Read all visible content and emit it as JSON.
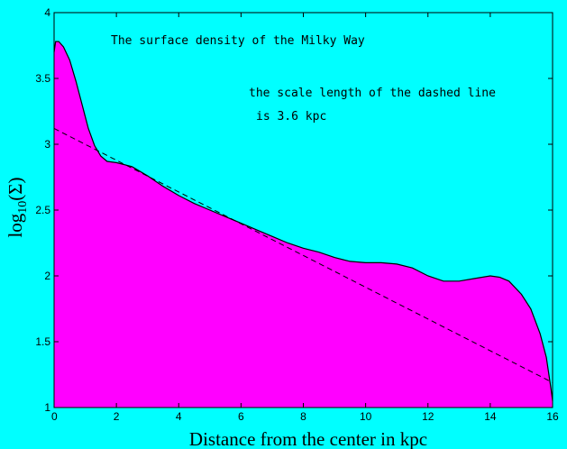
{
  "chart_data": {
    "type": "area",
    "title": "",
    "xlabel": "Distance from the center in kpc",
    "ylabel": {
      "base": "log",
      "sub": "10",
      "arg": "(Σ)"
    },
    "xlim": [
      0,
      16
    ],
    "ylim": [
      1,
      4
    ],
    "x_ticks": [
      0,
      2,
      4,
      6,
      8,
      10,
      12,
      14,
      16
    ],
    "y_ticks": [
      1,
      1.5,
      2,
      2.5,
      3,
      3.5,
      4
    ],
    "y_tick_labels": [
      "1",
      "1.5",
      "2",
      "2.5",
      "3",
      "3.5",
      "4"
    ],
    "grid": false,
    "colors": {
      "background": "#00ffff",
      "fill": "#ff00ff",
      "line": "#000000"
    },
    "annotations": [
      "The surface density of the Milky Way",
      "the scale length of the dashed line",
      "is 3.6 kpc"
    ],
    "series": [
      {
        "style": "filled-solid",
        "x": [
          0,
          0.05,
          0.15,
          0.3,
          0.5,
          0.7,
          0.9,
          1.1,
          1.3,
          1.5,
          1.7,
          2.0,
          2.5,
          3.0,
          3.5,
          4.0,
          4.5,
          5.0,
          5.5,
          6.0,
          6.5,
          7.0,
          7.5,
          8.0,
          8.5,
          9.0,
          9.5,
          10.0,
          10.5,
          11.0,
          11.5,
          12.0,
          12.5,
          13.0,
          13.5,
          14.0,
          14.3,
          14.6,
          15.0,
          15.3,
          15.6,
          15.8,
          15.95,
          16.0
        ],
        "y": [
          3.7,
          3.78,
          3.78,
          3.74,
          3.64,
          3.48,
          3.3,
          3.12,
          2.99,
          2.91,
          2.87,
          2.86,
          2.83,
          2.76,
          2.68,
          2.61,
          2.55,
          2.5,
          2.45,
          2.4,
          2.35,
          2.3,
          2.25,
          2.21,
          2.18,
          2.14,
          2.11,
          2.1,
          2.1,
          2.09,
          2.06,
          2.0,
          1.96,
          1.96,
          1.98,
          2.0,
          1.99,
          1.96,
          1.86,
          1.75,
          1.56,
          1.38,
          1.14,
          1.05
        ]
      },
      {
        "style": "dashed",
        "x": [
          0,
          16
        ],
        "y": [
          3.12,
          1.19
        ]
      }
    ]
  }
}
